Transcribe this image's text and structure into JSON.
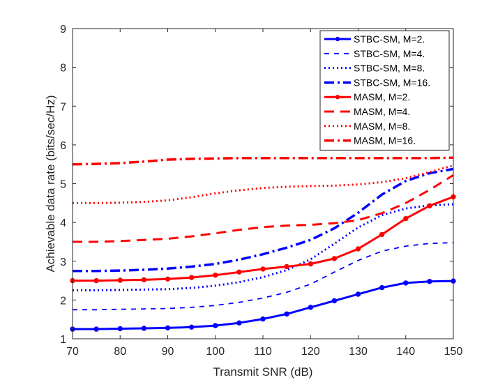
{
  "chart_data": {
    "type": "line",
    "title": "",
    "xlabel": "Transmit SNR (dB)",
    "ylabel": "Achievable data rate (bits/sec/Hz)",
    "xlim": [
      70,
      150
    ],
    "ylim": [
      1,
      9
    ],
    "xticks": [
      70,
      80,
      90,
      100,
      110,
      120,
      130,
      140,
      150
    ],
    "yticks": [
      1,
      2,
      3,
      4,
      5,
      6,
      7,
      8,
      9
    ],
    "grid": false,
    "legend_position": "top-right",
    "x": [
      70,
      75,
      80,
      85,
      90,
      95,
      100,
      105,
      110,
      115,
      120,
      125,
      130,
      135,
      140,
      145,
      150
    ],
    "series": [
      {
        "name": "STBC-SM, M=2.",
        "color": "#0000ff",
        "style": "solid-marker",
        "values": [
          1.25,
          1.25,
          1.26,
          1.27,
          1.28,
          1.3,
          1.34,
          1.41,
          1.51,
          1.64,
          1.81,
          1.98,
          2.15,
          2.32,
          2.44,
          2.48,
          2.49
        ]
      },
      {
        "name": "STBC-SM, M=4.",
        "color": "#0000ff",
        "style": "dashed-thin",
        "values": [
          1.75,
          1.75,
          1.76,
          1.77,
          1.78,
          1.81,
          1.86,
          1.94,
          2.05,
          2.2,
          2.41,
          2.72,
          3.02,
          3.26,
          3.39,
          3.46,
          3.48
        ]
      },
      {
        "name": "STBC-SM, M=8.",
        "color": "#0000ff",
        "style": "dotted",
        "values": [
          2.25,
          2.25,
          2.26,
          2.27,
          2.28,
          2.31,
          2.37,
          2.46,
          2.59,
          2.77,
          3.05,
          3.45,
          3.87,
          4.19,
          4.36,
          4.44,
          4.47
        ]
      },
      {
        "name": "STBC-SM, M=16.",
        "color": "#0000ff",
        "style": "dashdot",
        "values": [
          2.75,
          2.75,
          2.76,
          2.78,
          2.81,
          2.86,
          2.93,
          3.04,
          3.18,
          3.35,
          3.55,
          3.85,
          4.25,
          4.72,
          5.07,
          5.27,
          5.38
        ]
      },
      {
        "name": "MASM, M=2.",
        "color": "#ff0000",
        "style": "solid-marker",
        "values": [
          2.5,
          2.5,
          2.51,
          2.52,
          2.54,
          2.58,
          2.64,
          2.72,
          2.8,
          2.86,
          2.93,
          3.07,
          3.32,
          3.69,
          4.1,
          4.43,
          4.66
        ]
      },
      {
        "name": "MASM, M=4.",
        "color": "#ff0000",
        "style": "dashed-thick",
        "values": [
          3.5,
          3.5,
          3.52,
          3.55,
          3.58,
          3.64,
          3.72,
          3.81,
          3.88,
          3.92,
          3.94,
          3.98,
          4.06,
          4.24,
          4.5,
          4.84,
          5.22
        ]
      },
      {
        "name": "MASM, M=8.",
        "color": "#ff0000",
        "style": "dotted",
        "values": [
          4.5,
          4.5,
          4.51,
          4.53,
          4.57,
          4.65,
          4.75,
          4.83,
          4.89,
          4.92,
          4.94,
          4.95,
          4.98,
          5.04,
          5.14,
          5.3,
          5.47
        ]
      },
      {
        "name": "MASM, M=16.",
        "color": "#ff0000",
        "style": "dashdot",
        "values": [
          5.5,
          5.51,
          5.53,
          5.57,
          5.62,
          5.64,
          5.65,
          5.66,
          5.66,
          5.66,
          5.66,
          5.66,
          5.66,
          5.66,
          5.66,
          5.66,
          5.67
        ]
      }
    ]
  }
}
